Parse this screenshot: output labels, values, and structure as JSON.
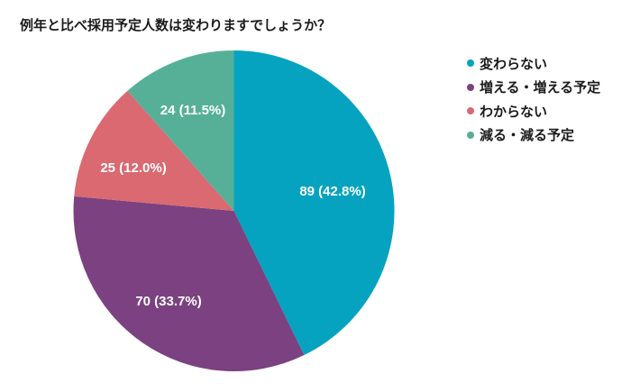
{
  "chart_data": {
    "type": "pie",
    "title": "例年と比べ採用予定人数は変わりますでしょうか？",
    "categories": [
      "変わらない",
      "増える・増える予定",
      "わからない",
      "減る・減る予定"
    ],
    "values": [
      89,
      70,
      25,
      24
    ],
    "percentages": [
      42.8,
      33.7,
      12.0,
      11.5
    ],
    "data_labels": [
      "89 (42.8%)",
      "70 (33.7%)",
      "25 (12.0%)",
      "24 (11.5%)"
    ],
    "colors": [
      "#05A3C0",
      "#7B4180",
      "#DA6971",
      "#56B097"
    ],
    "legend_position": "right",
    "start_angle": "12 o'clock, clockwise"
  },
  "legend": [
    {
      "label": "変わらない",
      "color": "#05A3C0"
    },
    {
      "label": "増える・増える予定",
      "color": "#7B4180"
    },
    {
      "label": "わからない",
      "color": "#DA6971"
    },
    {
      "label": "減る・減る予定",
      "color": "#56B097"
    }
  ]
}
